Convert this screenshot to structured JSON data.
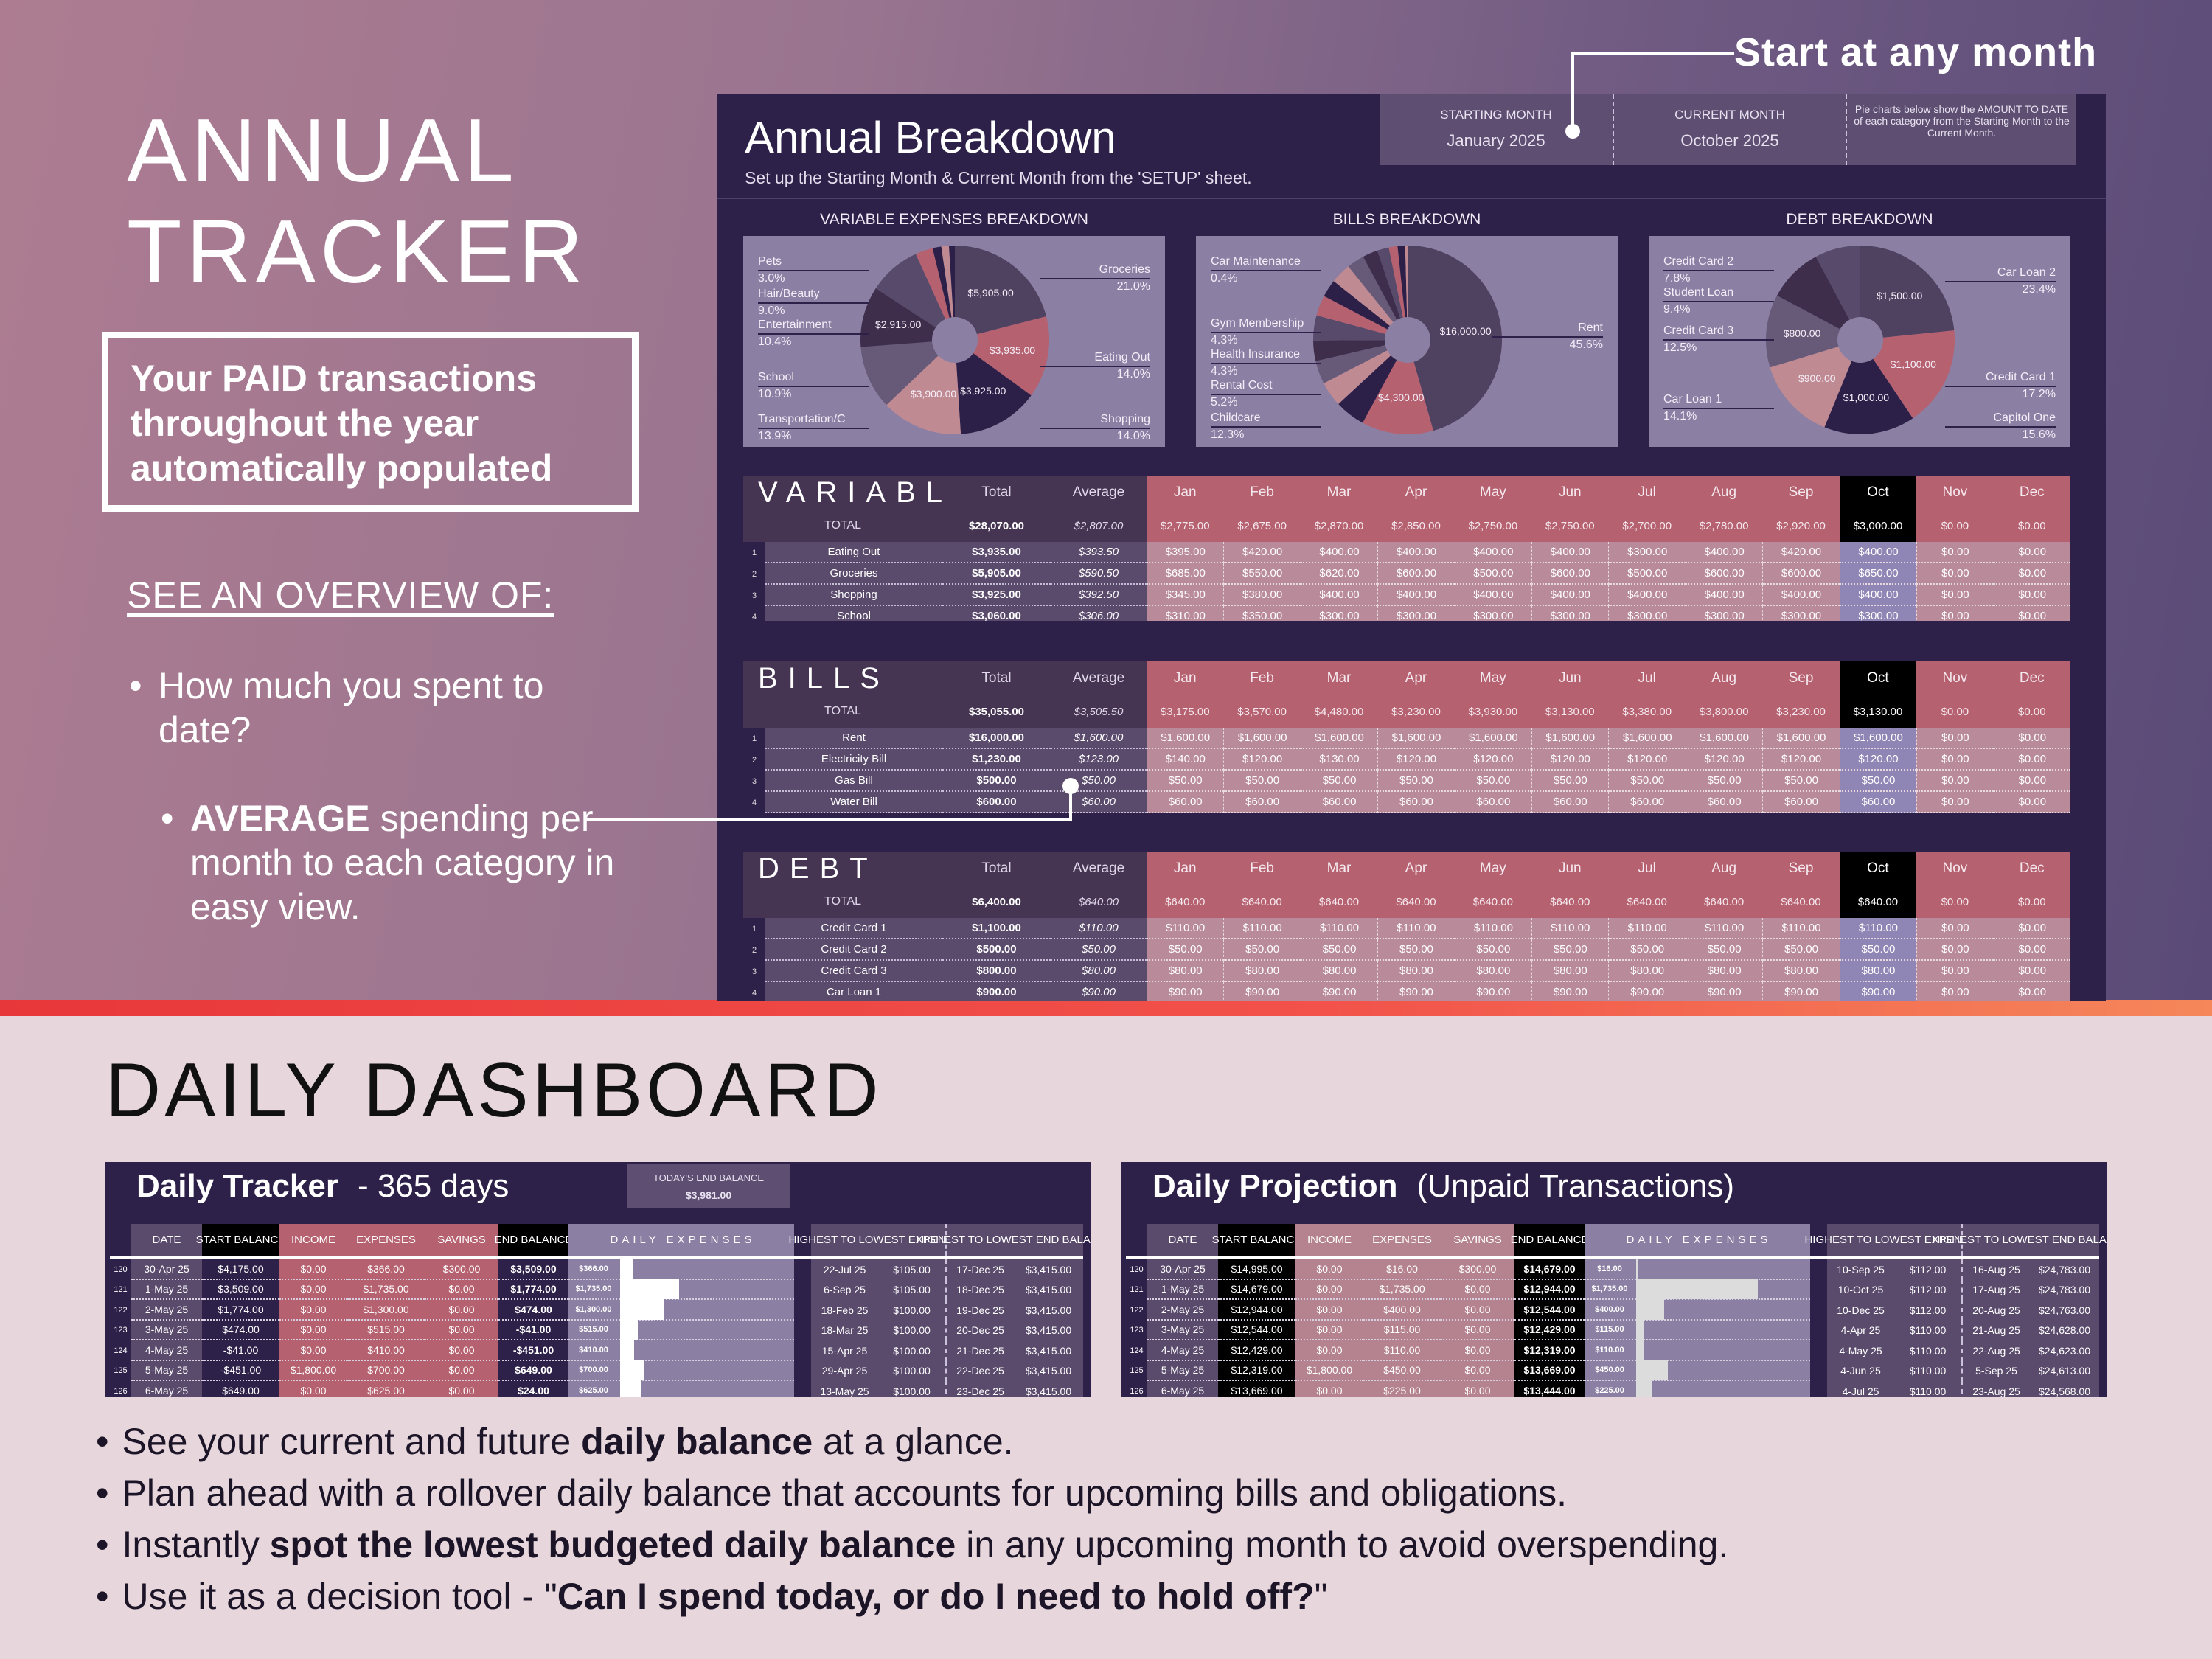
{
  "promo": {
    "annual_title_line1": "ANNUAL",
    "annual_title_line2": "TRACKER",
    "paid_box": "Your PAID transactions throughout the year automatically populated",
    "overview_heading": "SEE AN OVERVIEW OF:",
    "bullet1": "How much you spent to date?",
    "bullet2_bold": "AVERAGE",
    "bullet2_rest": " spending per month to each category in easy view.",
    "start_callout": "Start at any month",
    "daily_title": "DAILY DASHBOARD",
    "bottom_bullets": [
      [
        {
          "t": "See your current and future ",
          "b": false
        },
        {
          "t": "daily balance",
          "b": true
        },
        {
          "t": " at a glance.",
          "b": false
        }
      ],
      [
        {
          "t": "Plan ahead with a rollover daily balance that accounts for upcoming bills and obligations.",
          "b": false
        }
      ],
      [
        {
          "t": "Instantly ",
          "b": false
        },
        {
          "t": "spot the lowest budgeted daily balance",
          "b": true
        },
        {
          "t": " in any upcoming month to avoid overspending.",
          "b": false
        }
      ],
      [
        {
          "t": "Use it as a decision tool - \"",
          "b": false
        },
        {
          "t": "Can I spend today, or do I need to hold off?",
          "b": true
        },
        {
          "t": "\"",
          "b": false
        }
      ]
    ]
  },
  "annual": {
    "title": "Annual Breakdown",
    "subtitle": "Set up the Starting Month & Current Month from the 'SETUP' sheet.",
    "starting_month_label": "STARTING MONTH",
    "starting_month": "January  2025",
    "current_month_label": "CURRENT MONTH",
    "current_month": "October  2025",
    "note": "Pie charts below show the AMOUNT TO DATE of each category from the Starting Month to the Current Month."
  },
  "colors": {
    "panel": "#2e2149",
    "pie_bg": "#8b7fa3",
    "accent_pink": "#b5616f",
    "current_month": "#000000"
  },
  "chart_data": [
    {
      "type": "pie",
      "title": "VARIABLE EXPENSES BREAKDOWN",
      "slices": [
        {
          "label": "Groceries",
          "pct": 21.0,
          "value_label": "$5,905.00",
          "color": "#4f4160"
        },
        {
          "label": "Eating Out",
          "pct": 14.0,
          "value_label": "$3,935.00",
          "color": "#b5616f"
        },
        {
          "label": "Shopping",
          "pct": 14.0,
          "value_label": "$3,925.00",
          "color": "#2d2048"
        },
        {
          "label": "Transportation/C",
          "pct": 13.9,
          "value_label": "$3,900.00",
          "color": "#c08a93"
        },
        {
          "label": "School",
          "pct": 10.9,
          "color": "#665a78"
        },
        {
          "label": "Entertainment",
          "pct": 10.4,
          "value_label": "$2,915.00",
          "color": "#3e2e4c"
        },
        {
          "label": "Hair/Beauty",
          "pct": 9.0,
          "color": "#574a6a"
        },
        {
          "label": "Pets",
          "pct": 3.0,
          "color": "#b5616f"
        },
        {
          "pct": 1.5,
          "color": "#2d2048"
        },
        {
          "pct": 1.3,
          "color": "#c08a93"
        },
        {
          "pct": 1.0,
          "color": "#2d2048"
        }
      ]
    },
    {
      "type": "pie",
      "title": "BILLS BREAKDOWN",
      "slices": [
        {
          "label": "Rent",
          "pct": 45.6,
          "value_label": "$16,000.00",
          "color": "#4f4160"
        },
        {
          "label": "Childcare",
          "pct": 12.3,
          "value_label": "$4,300.00",
          "color": "#b5616f"
        },
        {
          "label": "Rental Cost",
          "pct": 5.2,
          "color": "#2d2048"
        },
        {
          "label": "Health Insurance",
          "pct": 4.3,
          "color": "#c08a93"
        },
        {
          "pct": 4.0,
          "color": "#665a78"
        },
        {
          "pct": 3.5,
          "color": "#3e2e4c"
        },
        {
          "label": "Gym Membership",
          "pct": 4.3,
          "color": "#574a6a"
        },
        {
          "pct": 3.5,
          "color": "#b5616f"
        },
        {
          "pct": 3.0,
          "color": "#2d2048"
        },
        {
          "pct": 3.5,
          "color": "#c08a93"
        },
        {
          "pct": 3.0,
          "color": "#665a78"
        },
        {
          "pct": 2.6,
          "color": "#3e2e4c"
        },
        {
          "pct": 2.0,
          "color": "#574a6a"
        },
        {
          "pct": 1.5,
          "color": "#b5616f"
        },
        {
          "pct": 1.3,
          "color": "#2d2048"
        },
        {
          "label": "Car Maintenance",
          "pct": 0.4,
          "color": "#c08a93"
        }
      ]
    },
    {
      "type": "pie",
      "title": "DEBT BREAKDOWN",
      "slices": [
        {
          "label": "Car Loan 2",
          "pct": 23.4,
          "value_label": "$1,500.00",
          "color": "#4f4160"
        },
        {
          "label": "Credit Card 1",
          "pct": 17.2,
          "value_label": "$1,100.00",
          "color": "#b5616f"
        },
        {
          "label": "Capitol One",
          "pct": 15.6,
          "value_label": "$1,000.00",
          "color": "#2d2048"
        },
        {
          "label": "Car Loan 1",
          "pct": 14.1,
          "value_label": "$900.00",
          "color": "#c08a93"
        },
        {
          "label": "Credit Card 3",
          "pct": 12.5,
          "value_label": "$800.00",
          "color": "#665a78"
        },
        {
          "label": "Student Loan",
          "pct": 9.4,
          "color": "#3e2e4c"
        },
        {
          "label": "Credit Card 2",
          "pct": 7.8,
          "color": "#574a6a"
        }
      ]
    }
  ],
  "tables": {
    "headers": {
      "total": "Total",
      "average": "Average",
      "total_row": "TOTAL"
    },
    "months": [
      "Jan",
      "Feb",
      "Mar",
      "Apr",
      "May",
      "Jun",
      "Jul",
      "Aug",
      "Sep",
      "Oct",
      "Nov",
      "Dec"
    ],
    "current_month": "Oct",
    "sections": [
      {
        "title": "VARIABLE",
        "total": "$28,070.00",
        "average": "$2,807.00",
        "monthly": [
          "$2,775.00",
          "$2,675.00",
          "$2,870.00",
          "$2,850.00",
          "$2,750.00",
          "$2,750.00",
          "$2,700.00",
          "$2,780.00",
          "$2,920.00",
          "$3,000.00",
          "$0.00",
          "$0.00"
        ],
        "rows": [
          {
            "n": "1",
            "name": "Eating Out",
            "total": "$3,935.00",
            "avg": "$393.50",
            "m": [
              "$395.00",
              "$420.00",
              "$400.00",
              "$400.00",
              "$400.00",
              "$400.00",
              "$300.00",
              "$400.00",
              "$420.00",
              "$400.00",
              "$0.00",
              "$0.00"
            ]
          },
          {
            "n": "2",
            "name": "Groceries",
            "total": "$5,905.00",
            "avg": "$590.50",
            "m": [
              "$685.00",
              "$550.00",
              "$620.00",
              "$600.00",
              "$500.00",
              "$600.00",
              "$500.00",
              "$600.00",
              "$600.00",
              "$650.00",
              "$0.00",
              "$0.00"
            ]
          },
          {
            "n": "3",
            "name": "Shopping",
            "total": "$3,925.00",
            "avg": "$392.50",
            "m": [
              "$345.00",
              "$380.00",
              "$400.00",
              "$400.00",
              "$400.00",
              "$400.00",
              "$400.00",
              "$400.00",
              "$400.00",
              "$400.00",
              "$0.00",
              "$0.00"
            ]
          },
          {
            "n": "4",
            "name": "School",
            "total": "$3,060.00",
            "avg": "$306.00",
            "m": [
              "$310.00",
              "$350.00",
              "$300.00",
              "$300.00",
              "$300.00",
              "$300.00",
              "$300.00",
              "$300.00",
              "$300.00",
              "$300.00",
              "$0.00",
              "$0.00"
            ]
          }
        ]
      },
      {
        "title": "BILLS",
        "total": "$35,055.00",
        "average": "$3,505.50",
        "monthly": [
          "$3,175.00",
          "$3,570.00",
          "$4,480.00",
          "$3,230.00",
          "$3,930.00",
          "$3,130.00",
          "$3,380.00",
          "$3,800.00",
          "$3,230.00",
          "$3,130.00",
          "$0.00",
          "$0.00"
        ],
        "rows": [
          {
            "n": "1",
            "name": "Rent",
            "total": "$16,000.00",
            "avg": "$1,600.00",
            "m": [
              "$1,600.00",
              "$1,600.00",
              "$1,600.00",
              "$1,600.00",
              "$1,600.00",
              "$1,600.00",
              "$1,600.00",
              "$1,600.00",
              "$1,600.00",
              "$1,600.00",
              "$0.00",
              "$0.00"
            ]
          },
          {
            "n": "2",
            "name": "Electricity Bill",
            "total": "$1,230.00",
            "avg": "$123.00",
            "m": [
              "$140.00",
              "$120.00",
              "$130.00",
              "$120.00",
              "$120.00",
              "$120.00",
              "$120.00",
              "$120.00",
              "$120.00",
              "$120.00",
              "$0.00",
              "$0.00"
            ]
          },
          {
            "n": "3",
            "name": "Gas Bill",
            "total": "$500.00",
            "avg": "$50.00",
            "m": [
              "$50.00",
              "$50.00",
              "$50.00",
              "$50.00",
              "$50.00",
              "$50.00",
              "$50.00",
              "$50.00",
              "$50.00",
              "$50.00",
              "$0.00",
              "$0.00"
            ]
          },
          {
            "n": "4",
            "name": "Water Bill",
            "total": "$600.00",
            "avg": "$60.00",
            "m": [
              "$60.00",
              "$60.00",
              "$60.00",
              "$60.00",
              "$60.00",
              "$60.00",
              "$60.00",
              "$60.00",
              "$60.00",
              "$60.00",
              "$0.00",
              "$0.00"
            ]
          }
        ]
      },
      {
        "title": "DEBT",
        "total": "$6,400.00",
        "average": "$640.00",
        "monthly": [
          "$640.00",
          "$640.00",
          "$640.00",
          "$640.00",
          "$640.00",
          "$640.00",
          "$640.00",
          "$640.00",
          "$640.00",
          "$640.00",
          "$0.00",
          "$0.00"
        ],
        "rows": [
          {
            "n": "1",
            "name": "Credit Card 1",
            "total": "$1,100.00",
            "avg": "$110.00",
            "m": [
              "$110.00",
              "$110.00",
              "$110.00",
              "$110.00",
              "$110.00",
              "$110.00",
              "$110.00",
              "$110.00",
              "$110.00",
              "$110.00",
              "$0.00",
              "$0.00"
            ]
          },
          {
            "n": "2",
            "name": "Credit Card 2",
            "total": "$500.00",
            "avg": "$50.00",
            "m": [
              "$50.00",
              "$50.00",
              "$50.00",
              "$50.00",
              "$50.00",
              "$50.00",
              "$50.00",
              "$50.00",
              "$50.00",
              "$50.00",
              "$0.00",
              "$0.00"
            ]
          },
          {
            "n": "3",
            "name": "Credit Card 3",
            "total": "$800.00",
            "avg": "$80.00",
            "m": [
              "$80.00",
              "$80.00",
              "$80.00",
              "$80.00",
              "$80.00",
              "$80.00",
              "$80.00",
              "$80.00",
              "$80.00",
              "$80.00",
              "$0.00",
              "$0.00"
            ]
          },
          {
            "n": "4",
            "name": "Car Loan 1",
            "total": "$900.00",
            "avg": "$90.00",
            "m": [
              "$90.00",
              "$90.00",
              "$90.00",
              "$90.00",
              "$90.00",
              "$90.00",
              "$90.00",
              "$90.00",
              "$90.00",
              "$90.00",
              "$0.00",
              "$0.00"
            ]
          }
        ]
      }
    ]
  },
  "daily": {
    "columns": [
      "DATE",
      "START BALANCE",
      "INCOME",
      "EXPENSES",
      "SAVINGS",
      "END BALANCE",
      "DAILY EXPENSES",
      "HIGHEST TO LOWEST EXPENSES",
      "HIGHEST TO LOWEST END BALANCE"
    ],
    "tracker": {
      "title": "Daily Tracker",
      "subtitle": "- 365 days",
      "today_label": "TODAY'S END BALANCE",
      "today_value": "$3,981.00",
      "rows": [
        [
          "120",
          "30-Apr 25",
          "$4,175.00",
          "$0.00",
          "$366.00",
          "$300.00",
          "$3,509.00",
          "22-Jul 25",
          "$105.00",
          "17-Dec 25",
          "$3,415.00"
        ],
        [
          "121",
          "1-May 25",
          "$3,509.00",
          "$0.00",
          "$1,735.00",
          "$0.00",
          "$1,774.00",
          "6-Sep 25",
          "$105.00",
          "18-Dec 25",
          "$3,415.00"
        ],
        [
          "122",
          "2-May 25",
          "$1,774.00",
          "$0.00",
          "$1,300.00",
          "$0.00",
          "$474.00",
          "18-Feb 25",
          "$100.00",
          "19-Dec 25",
          "$3,415.00"
        ],
        [
          "123",
          "3-May 25",
          "$474.00",
          "$0.00",
          "$515.00",
          "$0.00",
          "-$41.00",
          "18-Mar 25",
          "$100.00",
          "20-Dec 25",
          "$3,415.00"
        ],
        [
          "124",
          "4-May 25",
          "-$41.00",
          "$0.00",
          "$410.00",
          "$0.00",
          "-$451.00",
          "15-Apr 25",
          "$100.00",
          "21-Dec 25",
          "$3,415.00"
        ],
        [
          "125",
          "5-May 25",
          "-$451.00",
          "$1,800.00",
          "$700.00",
          "$0.00",
          "$649.00",
          "29-Apr 25",
          "$100.00",
          "22-Dec 25",
          "$3,415.00"
        ],
        [
          "126",
          "6-May 25",
          "$649.00",
          "$0.00",
          "$625.00",
          "$0.00",
          "$24.00",
          "13-May 25",
          "$100.00",
          "23-Dec 25",
          "$3,415.00"
        ]
      ]
    },
    "projection": {
      "title": "Daily Projection",
      "subtitle": "(Unpaid Transactions)",
      "rows": [
        [
          "120",
          "30-Apr 25",
          "$14,995.00",
          "$0.00",
          "$16.00",
          "$300.00",
          "$14,679.00",
          "10-Sep 25",
          "$112.00",
          "16-Aug 25",
          "$24,783.00"
        ],
        [
          "121",
          "1-May 25",
          "$14,679.00",
          "$0.00",
          "$1,735.00",
          "$0.00",
          "$12,944.00",
          "10-Oct 25",
          "$112.00",
          "17-Aug 25",
          "$24,783.00"
        ],
        [
          "122",
          "2-May 25",
          "$12,944.00",
          "$0.00",
          "$400.00",
          "$0.00",
          "$12,544.00",
          "10-Dec 25",
          "$112.00",
          "20-Aug 25",
          "$24,763.00"
        ],
        [
          "123",
          "3-May 25",
          "$12,544.00",
          "$0.00",
          "$115.00",
          "$0.00",
          "$12,429.00",
          "4-Apr 25",
          "$110.00",
          "21-Aug 25",
          "$24,628.00"
        ],
        [
          "124",
          "4-May 25",
          "$12,429.00",
          "$0.00",
          "$110.00",
          "$0.00",
          "$12,319.00",
          "4-May 25",
          "$110.00",
          "22-Aug 25",
          "$24,623.00"
        ],
        [
          "125",
          "5-May 25",
          "$12,319.00",
          "$1,800.00",
          "$450.00",
          "$0.00",
          "$13,669.00",
          "4-Jun 25",
          "$110.00",
          "5-Sep 25",
          "$24,613.00"
        ],
        [
          "126",
          "6-May 25",
          "$13,669.00",
          "$0.00",
          "$225.00",
          "$0.00",
          "$13,444.00",
          "4-Jul 25",
          "$110.00",
          "23-Aug 25",
          "$24,568.00"
        ]
      ]
    }
  }
}
